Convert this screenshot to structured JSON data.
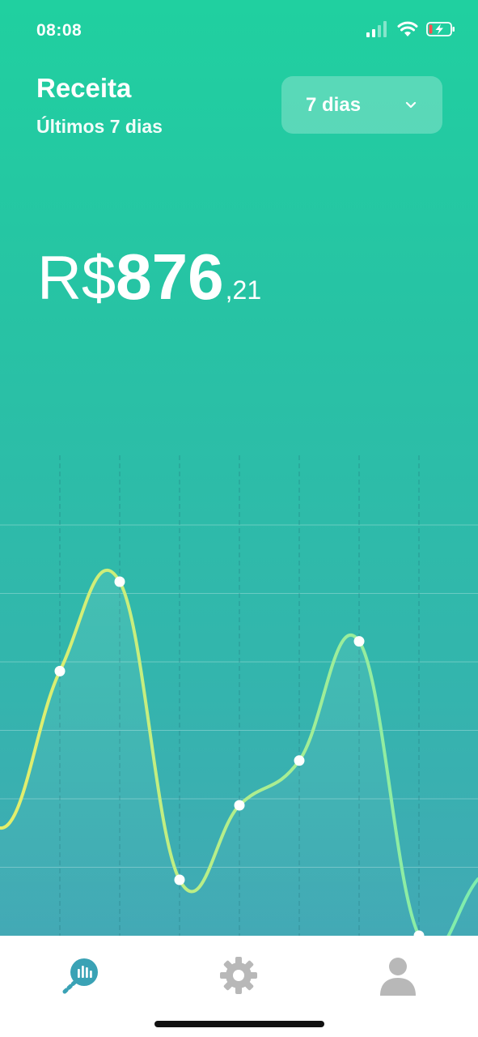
{
  "status_bar": {
    "time": "08:08"
  },
  "header": {
    "title": "Receita",
    "subtitle": "Últimos 7 dias"
  },
  "period_select": {
    "value": "7 dias"
  },
  "amount": {
    "currency": "R$",
    "integer": "876",
    "cents": ",21"
  },
  "colors": {
    "accent": "#3aa2b5",
    "line_start": "#e5ee6a",
    "line_end": "#7dedae",
    "inactive_icon": "#b8b8b8"
  },
  "chart_data": {
    "type": "line",
    "x": [
      1,
      2,
      3,
      4,
      5,
      6,
      7
    ],
    "values": [
      0.71,
      0.95,
      0.15,
      0.35,
      0.47,
      0.79,
      0.0
    ],
    "grid": true
  },
  "tabbar": {
    "items": [
      {
        "icon": "chart-pin-icon",
        "active": true
      },
      {
        "icon": "gear-icon",
        "active": false
      },
      {
        "icon": "user-icon",
        "active": false
      }
    ]
  }
}
